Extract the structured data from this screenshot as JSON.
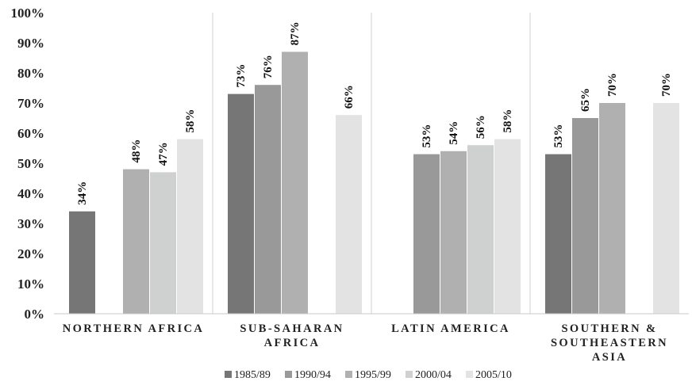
{
  "chart_data": {
    "type": "bar",
    "title": "",
    "xlabel": "",
    "ylabel": "",
    "ylim": [
      0,
      100
    ],
    "y_ticks": [
      "0%",
      "10%",
      "20%",
      "30%",
      "40%",
      "50%",
      "60%",
      "70%",
      "80%",
      "90%",
      "100%"
    ],
    "grid": false,
    "legend_position": "bottom",
    "categories": [
      [
        "NORTHERN AFRICA"
      ],
      [
        "SUB-SAHARAN",
        "AFRICA"
      ],
      [
        "LATIN AMERICA"
      ],
      [
        "SOUTHERN &",
        "SOUTHEASTERN",
        "ASIA"
      ]
    ],
    "series": [
      {
        "name": "1985/89",
        "color": "#767676",
        "values": [
          34,
          73,
          null,
          53
        ],
        "labels": [
          "34%",
          "73%",
          null,
          "53%"
        ]
      },
      {
        "name": "1990/94",
        "color": "#999999",
        "values": [
          null,
          76,
          53,
          65
        ],
        "labels": [
          null,
          "76%",
          "53%",
          "65%"
        ]
      },
      {
        "name": "1995/99",
        "color": "#b0b0b0",
        "values": [
          48,
          87,
          54,
          70
        ],
        "labels": [
          "48%",
          "87%",
          "54%",
          "70%"
        ]
      },
      {
        "name": "2000/04",
        "color": "#cfd1d1",
        "values": [
          47,
          null,
          56,
          null
        ],
        "labels": [
          "47%",
          null,
          "56%",
          null
        ]
      },
      {
        "name": "2005/10",
        "color": "#e3e3e3",
        "values": [
          58,
          66,
          58,
          70
        ],
        "labels": [
          "58%",
          "66%",
          "58%",
          "70%"
        ]
      }
    ]
  }
}
